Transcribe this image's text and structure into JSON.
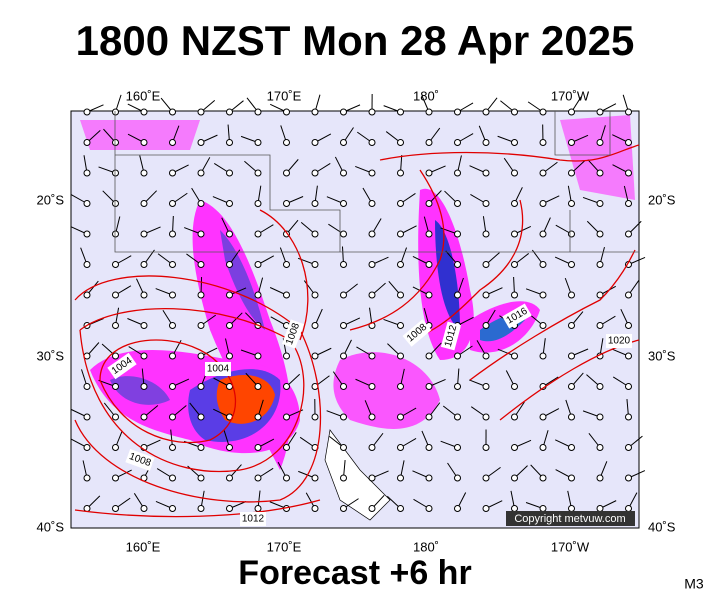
{
  "title": "1800 NZST Mon 28 Apr 2025",
  "longitude_labels_top": [
    "160˚E",
    "170˚E",
    "180˚",
    "170˚W"
  ],
  "longitude_labels_bottom": [
    "160˚E",
    "170˚E",
    "180˚",
    "170˚W"
  ],
  "latitude_labels_left": [
    "20˚S",
    "30˚S",
    "40˚S"
  ],
  "latitude_labels_right": [
    "20˚S",
    "30˚S",
    "40˚S"
  ],
  "isobar_labels": [
    "1004",
    "1004",
    "1008",
    "1008",
    "1012",
    "1016",
    "1020",
    "1008",
    "1012"
  ],
  "copyright": "Copyright metvuw.com",
  "subtitle": "Forecast +6 hr",
  "model": "M3"
}
